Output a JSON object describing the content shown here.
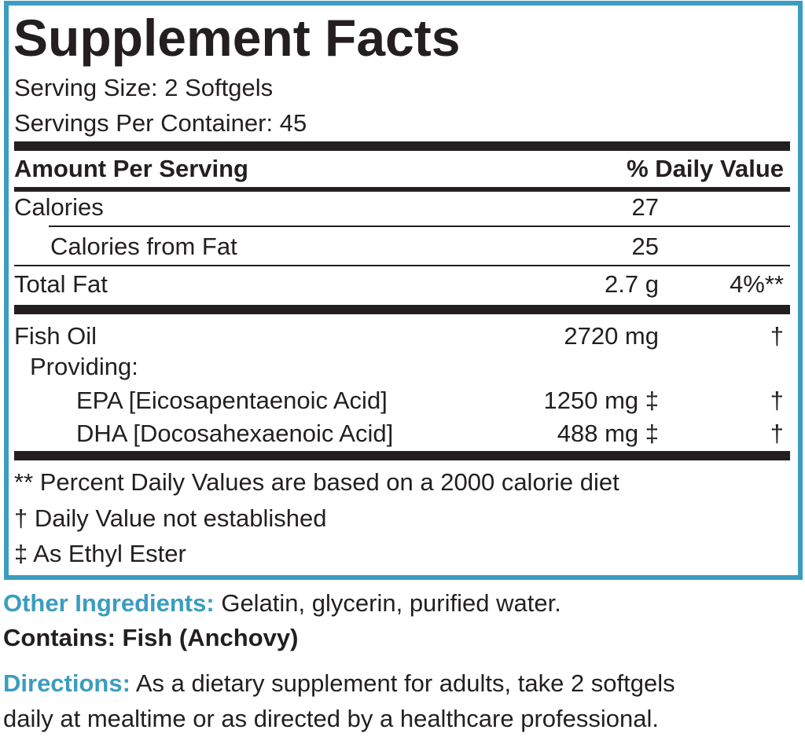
{
  "header": {
    "title": "Supplement Facts",
    "serving_size": "Serving Size: 2 Softgels",
    "servings_per_container": "Servings Per Container: 45"
  },
  "table": {
    "columns": [
      "Amount Per Serving",
      "% Daily Value"
    ],
    "rows": [
      {
        "name": "Calories",
        "amount": "27"
      },
      {
        "name": "Calories from Fat",
        "amount": "25"
      },
      {
        "name": "Total Fat",
        "amount": "2.7 g",
        "daily_value": "4%**"
      },
      {
        "name": "Fish Oil",
        "amount": "2720 mg",
        "daily_value": "†"
      },
      {
        "name": "Providing:"
      },
      {
        "name": "EPA [Eicosapentaenoic Acid]",
        "amount": "1250 mg ‡",
        "daily_value": "†"
      },
      {
        "name": "DHA [Docosahexaenoic Acid]",
        "amount": "488 mg ‡",
        "daily_value": "†"
      }
    ]
  },
  "footnotes": [
    "** Percent Daily Values are based on a 2000 calorie diet",
    "† Daily Value not established",
    "‡ As Ethyl Ester"
  ],
  "other_ingredients": {
    "label": "Other Ingredients:",
    "text": "Gelatin, glycerin, purified water."
  },
  "contains": "Contains: Fish (Anchovy)",
  "directions": {
    "label": "Directions:",
    "lines": [
      "As a dietary supplement for adults, take 2 softgels",
      "daily at mealtime or as directed by a healthcare professional."
    ]
  }
}
